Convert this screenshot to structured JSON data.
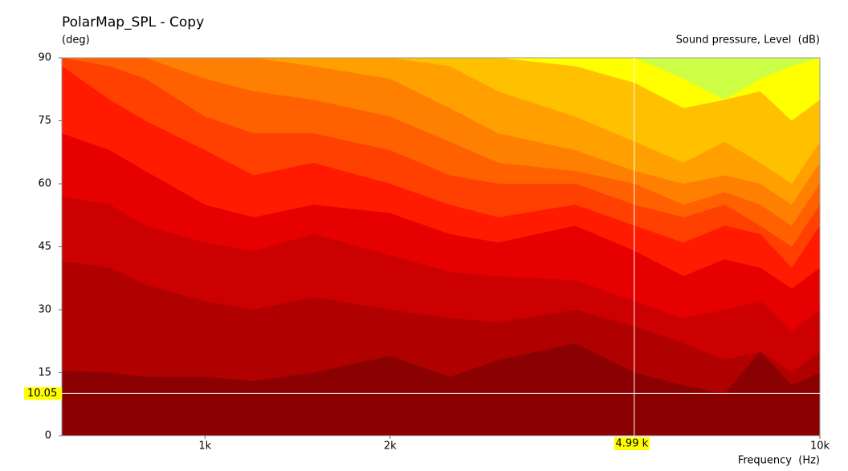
{
  "chart_data": {
    "type": "contour",
    "title": "PolarMap_SPL - Copy",
    "y_label": "(deg)",
    "z_label": "Sound pressure, Level  (dB)",
    "x_label": "Frequency  (Hz)",
    "log_x": true,
    "xlim": [
      585,
      10000
    ],
    "xticks": [
      {
        "value": 1000,
        "label": "1k"
      },
      {
        "value": 2000,
        "label": "2k"
      },
      {
        "value": 10000,
        "label": "10k"
      }
    ],
    "ylim": [
      0,
      90
    ],
    "yticks": [
      0,
      15,
      30,
      45,
      60,
      75,
      90
    ],
    "top_color": "#ccff44",
    "x": [
      585,
      700,
      800,
      1000,
      1200,
      1500,
      2000,
      2500,
      3000,
      4000,
      5000,
      6000,
      7000,
      8000,
      9000,
      10000
    ],
    "contours": [
      {
        "color": "#ffff00",
        "values": [
          90,
          90,
          90,
          90,
          90,
          90,
          90,
          90,
          90,
          90,
          90,
          85,
          80,
          85,
          88,
          90
        ]
      },
      {
        "color": "#ffc000",
        "values": [
          90,
          90,
          90,
          90,
          90,
          90,
          90,
          90,
          90,
          88,
          84,
          78,
          80,
          82,
          75,
          80
        ]
      },
      {
        "color": "#ffa000",
        "values": [
          90,
          90,
          90,
          90,
          90,
          90,
          90,
          88,
          82,
          76,
          70,
          65,
          70,
          65,
          60,
          70
        ]
      },
      {
        "color": "#ff8000",
        "values": [
          90,
          90,
          90,
          90,
          90,
          88,
          85,
          78,
          72,
          68,
          63,
          60,
          62,
          60,
          55,
          65
        ]
      },
      {
        "color": "#ff6000",
        "values": [
          90,
          90,
          90,
          85,
          82,
          80,
          76,
          70,
          65,
          63,
          60,
          55,
          58,
          55,
          50,
          60
        ]
      },
      {
        "color": "#ff4000",
        "values": [
          90,
          88,
          85,
          76,
          72,
          72,
          68,
          62,
          60,
          60,
          55,
          52,
          55,
          50,
          45,
          55
        ]
      },
      {
        "color": "#ff1a00",
        "values": [
          88,
          80,
          75,
          68,
          62,
          65,
          60,
          55,
          52,
          55,
          50,
          46,
          50,
          48,
          40,
          50
        ]
      },
      {
        "color": "#e60000",
        "values": [
          72,
          68,
          63,
          55,
          52,
          55,
          53,
          48,
          46,
          50,
          44,
          38,
          42,
          40,
          35,
          40
        ]
      },
      {
        "color": "#cc0000",
        "values": [
          57,
          55,
          50,
          46,
          44,
          48,
          43,
          39,
          38,
          37,
          32,
          28,
          30,
          32,
          25,
          30
        ]
      },
      {
        "color": "#b00000",
        "values": [
          41.5,
          40,
          36,
          32,
          30,
          33,
          30,
          28,
          27,
          30,
          26,
          22,
          18,
          20,
          15,
          20
        ]
      },
      {
        "color": "#8b0000",
        "values": [
          15.5,
          15,
          14,
          14,
          13,
          15,
          19,
          14,
          18,
          22,
          15,
          12,
          10,
          20,
          12,
          15
        ]
      }
    ],
    "cursor": {
      "x": 4990,
      "x_label": "4.99 k",
      "y": 10.05
    }
  }
}
